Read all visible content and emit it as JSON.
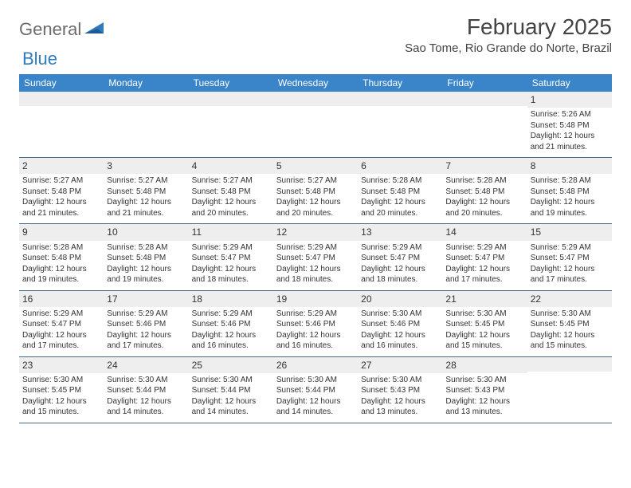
{
  "logo": {
    "general": "General",
    "blue": "Blue"
  },
  "header": {
    "month_title": "February 2025",
    "location": "Sao Tome, Rio Grande do Norte, Brazil"
  },
  "colors": {
    "header_bg": "#3a85c9",
    "header_text": "#ffffff",
    "number_bg": "#eeeeee",
    "divider": "#4a6a8a",
    "logo_gray": "#6b6b6b",
    "logo_blue": "#2f7bbf"
  },
  "weekdays": [
    "Sunday",
    "Monday",
    "Tuesday",
    "Wednesday",
    "Thursday",
    "Friday",
    "Saturday"
  ],
  "weeks": [
    [
      null,
      null,
      null,
      null,
      null,
      null,
      {
        "n": "1",
        "sr": "5:26 AM",
        "ss": "5:48 PM",
        "dl": "12 hours and 21 minutes."
      }
    ],
    [
      {
        "n": "2",
        "sr": "5:27 AM",
        "ss": "5:48 PM",
        "dl": "12 hours and 21 minutes."
      },
      {
        "n": "3",
        "sr": "5:27 AM",
        "ss": "5:48 PM",
        "dl": "12 hours and 21 minutes."
      },
      {
        "n": "4",
        "sr": "5:27 AM",
        "ss": "5:48 PM",
        "dl": "12 hours and 20 minutes."
      },
      {
        "n": "5",
        "sr": "5:27 AM",
        "ss": "5:48 PM",
        "dl": "12 hours and 20 minutes."
      },
      {
        "n": "6",
        "sr": "5:28 AM",
        "ss": "5:48 PM",
        "dl": "12 hours and 20 minutes."
      },
      {
        "n": "7",
        "sr": "5:28 AM",
        "ss": "5:48 PM",
        "dl": "12 hours and 20 minutes."
      },
      {
        "n": "8",
        "sr": "5:28 AM",
        "ss": "5:48 PM",
        "dl": "12 hours and 19 minutes."
      }
    ],
    [
      {
        "n": "9",
        "sr": "5:28 AM",
        "ss": "5:48 PM",
        "dl": "12 hours and 19 minutes."
      },
      {
        "n": "10",
        "sr": "5:28 AM",
        "ss": "5:48 PM",
        "dl": "12 hours and 19 minutes."
      },
      {
        "n": "11",
        "sr": "5:29 AM",
        "ss": "5:47 PM",
        "dl": "12 hours and 18 minutes."
      },
      {
        "n": "12",
        "sr": "5:29 AM",
        "ss": "5:47 PM",
        "dl": "12 hours and 18 minutes."
      },
      {
        "n": "13",
        "sr": "5:29 AM",
        "ss": "5:47 PM",
        "dl": "12 hours and 18 minutes."
      },
      {
        "n": "14",
        "sr": "5:29 AM",
        "ss": "5:47 PM",
        "dl": "12 hours and 17 minutes."
      },
      {
        "n": "15",
        "sr": "5:29 AM",
        "ss": "5:47 PM",
        "dl": "12 hours and 17 minutes."
      }
    ],
    [
      {
        "n": "16",
        "sr": "5:29 AM",
        "ss": "5:47 PM",
        "dl": "12 hours and 17 minutes."
      },
      {
        "n": "17",
        "sr": "5:29 AM",
        "ss": "5:46 PM",
        "dl": "12 hours and 17 minutes."
      },
      {
        "n": "18",
        "sr": "5:29 AM",
        "ss": "5:46 PM",
        "dl": "12 hours and 16 minutes."
      },
      {
        "n": "19",
        "sr": "5:29 AM",
        "ss": "5:46 PM",
        "dl": "12 hours and 16 minutes."
      },
      {
        "n": "20",
        "sr": "5:30 AM",
        "ss": "5:46 PM",
        "dl": "12 hours and 16 minutes."
      },
      {
        "n": "21",
        "sr": "5:30 AM",
        "ss": "5:45 PM",
        "dl": "12 hours and 15 minutes."
      },
      {
        "n": "22",
        "sr": "5:30 AM",
        "ss": "5:45 PM",
        "dl": "12 hours and 15 minutes."
      }
    ],
    [
      {
        "n": "23",
        "sr": "5:30 AM",
        "ss": "5:45 PM",
        "dl": "12 hours and 15 minutes."
      },
      {
        "n": "24",
        "sr": "5:30 AM",
        "ss": "5:44 PM",
        "dl": "12 hours and 14 minutes."
      },
      {
        "n": "25",
        "sr": "5:30 AM",
        "ss": "5:44 PM",
        "dl": "12 hours and 14 minutes."
      },
      {
        "n": "26",
        "sr": "5:30 AM",
        "ss": "5:44 PM",
        "dl": "12 hours and 14 minutes."
      },
      {
        "n": "27",
        "sr": "5:30 AM",
        "ss": "5:43 PM",
        "dl": "12 hours and 13 minutes."
      },
      {
        "n": "28",
        "sr": "5:30 AM",
        "ss": "5:43 PM",
        "dl": "12 hours and 13 minutes."
      },
      null
    ]
  ],
  "labels": {
    "sunrise": "Sunrise:",
    "sunset": "Sunset:",
    "daylight": "Daylight:"
  }
}
